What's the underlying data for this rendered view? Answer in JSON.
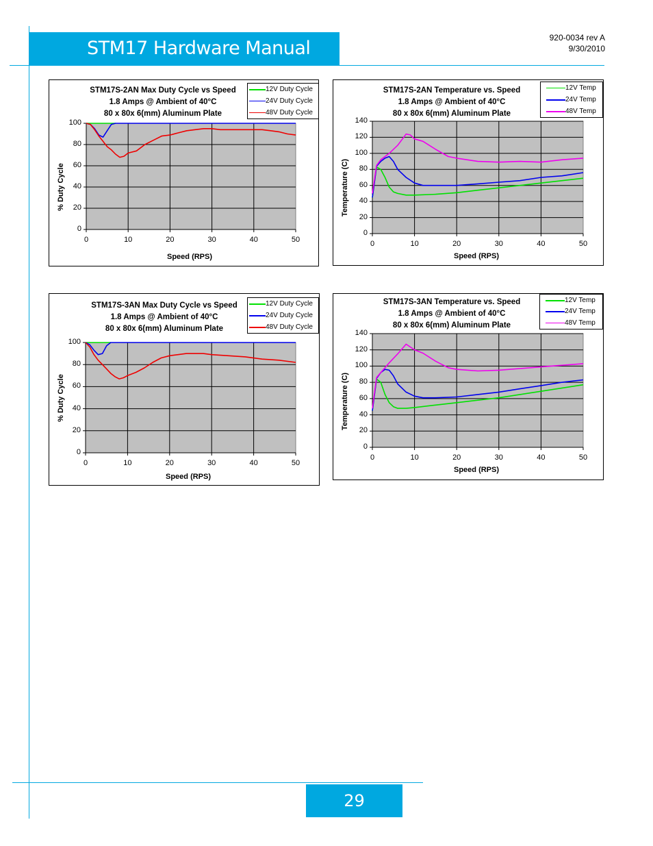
{
  "header": {
    "title": "STM17 Hardware Manual",
    "doc_number": "920-0034 rev A",
    "date": "9/30/2010"
  },
  "footer": {
    "page_number": "29"
  },
  "colors": {
    "accent": "#00a8e0",
    "plot_bg": "#c0c0c0",
    "green": "#00e000",
    "blue": "#0000ee",
    "red": "#ee0000",
    "magenta": "#ee00ee"
  },
  "charts": [
    {
      "id": "c1",
      "title_lines": [
        "STM17S-2AN  Max Duty Cycle vs Speed",
        "1.8 Amps @ Ambient of 40°C",
        "80 x 80x 6(mm) Aluminum Plate"
      ],
      "ylabel": "% Duty Cycle",
      "xlabel": "Speed (RPS)",
      "legend": [
        "12V Duty Cycle",
        "24V Duty Cycle",
        "48V Duty Cycle"
      ],
      "xticks": [
        "0",
        "10",
        "20",
        "30",
        "40",
        "50"
      ],
      "yticks": [
        "0",
        "20",
        "40",
        "60",
        "80",
        "100"
      ]
    },
    {
      "id": "c2",
      "title_lines": [
        "STM17S-2AN Temperature vs. Speed",
        "1.8 Amps @ Ambient of 40°C",
        "80 x 80x 6(mm) Aluminum Plate"
      ],
      "ylabel": "Temperature (C)",
      "xlabel": "Speed (RPS)",
      "legend": [
        "12V Temp",
        "24V Temp",
        "48V Temp"
      ],
      "xticks": [
        "0",
        "10",
        "20",
        "30",
        "40",
        "50"
      ],
      "yticks": [
        "0",
        "20",
        "40",
        "60",
        "80",
        "100",
        "120",
        "140"
      ]
    },
    {
      "id": "c3",
      "title_lines": [
        "STM17S-3AN  Max Duty Cycle vs Speed",
        "1.8 Amps @ Ambient of 40°C",
        "80 x 80x 6(mm) Aluminum Plate"
      ],
      "ylabel": "% Duty Cycle",
      "xlabel": "Speed (RPS)",
      "legend": [
        "12V Duty Cycle",
        "24V Duty Cycle",
        "48V Duty Cycle"
      ],
      "xticks": [
        "0",
        "10",
        "20",
        "30",
        "40",
        "50"
      ],
      "yticks": [
        "0",
        "20",
        "40",
        "60",
        "80",
        "100"
      ]
    },
    {
      "id": "c4",
      "title_lines": [
        "STM17S-3AN Temperature vs. Speed",
        "1.8 Amps @ Ambient of 40°C",
        "80 x 80x 6(mm) Aluminum Plate"
      ],
      "ylabel": "Temperature (C)",
      "xlabel": "Speed (RPS)",
      "legend": [
        "12V Temp",
        "24V Temp",
        "48V Temp"
      ],
      "xticks": [
        "0",
        "10",
        "20",
        "30",
        "40",
        "50"
      ],
      "yticks": [
        "0",
        "20",
        "40",
        "60",
        "80",
        "100",
        "120",
        "140"
      ]
    }
  ],
  "chart_data": [
    {
      "type": "line",
      "title": "STM17S-2AN  Max Duty Cycle vs Speed",
      "xlabel": "Speed (RPS)",
      "ylabel": "% Duty Cycle",
      "xlim": [
        0,
        50
      ],
      "ylim": [
        0,
        100
      ],
      "grid": true,
      "legend_position": "top-right",
      "series": [
        {
          "name": "12V Duty Cycle",
          "color": "#00e000",
          "x": [
            0,
            1,
            2,
            3,
            4,
            5,
            6,
            7
          ],
          "y": [
            100,
            100,
            100,
            100,
            100,
            100,
            100,
            100
          ]
        },
        {
          "name": "24V Duty Cycle",
          "color": "#0000ee",
          "x": [
            0,
            1,
            2,
            3,
            4,
            5,
            6,
            7,
            10,
            20,
            30,
            40,
            50
          ],
          "y": [
            100,
            99,
            95,
            89,
            87,
            93,
            99,
            100,
            100,
            100,
            100,
            100,
            100
          ]
        },
        {
          "name": "48V Duty Cycle",
          "color": "#ee0000",
          "x": [
            0,
            1,
            2,
            3,
            4,
            5,
            6,
            7,
            8,
            9,
            10,
            12,
            14,
            16,
            18,
            20,
            22,
            24,
            26,
            28,
            30,
            32,
            34,
            36,
            38,
            40,
            42,
            44,
            46,
            48,
            50
          ],
          "y": [
            100,
            99,
            94,
            88,
            83,
            78,
            75,
            71,
            68,
            69,
            72,
            74,
            80,
            84,
            88,
            89,
            91,
            93,
            94,
            95,
            95,
            94,
            94,
            94,
            94,
            94,
            94,
            93,
            92,
            90,
            89
          ]
        }
      ]
    },
    {
      "type": "line",
      "title": "STM17S-2AN Temperature vs. Speed",
      "xlabel": "Speed (RPS)",
      "ylabel": "Temperature (C)",
      "xlim": [
        0,
        50
      ],
      "ylim": [
        0,
        140
      ],
      "grid": true,
      "legend_position": "top-right",
      "series": [
        {
          "name": "12V Temp",
          "color": "#00e000",
          "x": [
            0,
            1,
            2,
            3,
            4,
            5,
            6,
            8,
            10,
            15,
            20,
            25,
            30,
            35,
            40,
            45,
            50
          ],
          "y": [
            45,
            83,
            80,
            70,
            58,
            52,
            50,
            48,
            48,
            49,
            51,
            54,
            57,
            60,
            63,
            66,
            69
          ]
        },
        {
          "name": "24V Temp",
          "color": "#0000ee",
          "x": [
            0,
            1,
            2,
            3,
            4,
            5,
            6,
            8,
            10,
            12,
            15,
            20,
            25,
            30,
            35,
            40,
            45,
            50
          ],
          "y": [
            45,
            84,
            90,
            94,
            96,
            90,
            80,
            70,
            63,
            60,
            60,
            60,
            62,
            64,
            66,
            70,
            72,
            76
          ]
        },
        {
          "name": "48V Temp",
          "color": "#ee00ee",
          "x": [
            0,
            1,
            2,
            4,
            6,
            8,
            9,
            10,
            12,
            15,
            18,
            20,
            25,
            30,
            35,
            40,
            45,
            50
          ],
          "y": [
            50,
            85,
            92,
            100,
            110,
            124,
            123,
            118,
            115,
            105,
            96,
            94,
            90,
            89,
            90,
            89,
            92,
            94
          ]
        }
      ]
    },
    {
      "type": "line",
      "title": "STM17S-3AN  Max Duty Cycle vs Speed",
      "xlabel": "Speed (RPS)",
      "ylabel": "% Duty Cycle",
      "xlim": [
        0,
        50
      ],
      "ylim": [
        0,
        100
      ],
      "grid": true,
      "legend_position": "top-right",
      "series": [
        {
          "name": "12V Duty Cycle",
          "color": "#00e000",
          "x": [
            0,
            1,
            2,
            3,
            4,
            5,
            6
          ],
          "y": [
            100,
            100,
            100,
            100,
            100,
            100,
            100
          ]
        },
        {
          "name": "24V Duty Cycle",
          "color": "#0000ee",
          "x": [
            0,
            1,
            2,
            3,
            4,
            5,
            6,
            7,
            10,
            20,
            30,
            40,
            50
          ],
          "y": [
            100,
            98,
            93,
            89,
            90,
            97,
            100,
            100,
            100,
            100,
            100,
            100,
            100
          ]
        },
        {
          "name": "48V Duty Cycle",
          "color": "#ee0000",
          "x": [
            0,
            1,
            2,
            3,
            4,
            5,
            6,
            7,
            8,
            9,
            10,
            12,
            14,
            16,
            18,
            20,
            22,
            24,
            26,
            28,
            30,
            34,
            38,
            42,
            46,
            50
          ],
          "y": [
            100,
            96,
            89,
            84,
            80,
            76,
            72,
            69,
            67,
            68,
            70,
            73,
            77,
            82,
            86,
            88,
            89,
            90,
            90,
            90,
            89,
            88,
            87,
            85,
            84,
            82
          ]
        }
      ]
    },
    {
      "type": "line",
      "title": "STM17S-3AN Temperature vs. Speed",
      "xlabel": "Speed (RPS)",
      "ylabel": "Temperature (C)",
      "xlim": [
        0,
        50
      ],
      "ylim": [
        0,
        140
      ],
      "grid": true,
      "legend_position": "top-right",
      "series": [
        {
          "name": "12V Temp",
          "color": "#00e000",
          "x": [
            0,
            1,
            2,
            3,
            4,
            5,
            6,
            8,
            10,
            15,
            20,
            25,
            30,
            35,
            40,
            45,
            50
          ],
          "y": [
            45,
            84,
            80,
            65,
            55,
            50,
            48,
            48,
            49,
            52,
            55,
            58,
            61,
            65,
            69,
            73,
            77
          ]
        },
        {
          "name": "24V Temp",
          "color": "#0000ee",
          "x": [
            0,
            1,
            2,
            3,
            4,
            5,
            6,
            8,
            10,
            12,
            15,
            20,
            25,
            30,
            35,
            40,
            45,
            50
          ],
          "y": [
            45,
            85,
            92,
            96,
            95,
            88,
            78,
            68,
            63,
            61,
            61,
            62,
            65,
            68,
            72,
            76,
            80,
            83
          ]
        },
        {
          "name": "48V Temp",
          "color": "#ee00ee",
          "x": [
            0,
            1,
            2,
            4,
            6,
            8,
            10,
            12,
            15,
            18,
            20,
            25,
            30,
            35,
            40,
            45,
            50
          ],
          "y": [
            48,
            86,
            92,
            104,
            115,
            127,
            120,
            116,
            106,
            98,
            96,
            94,
            95,
            97,
            99,
            101,
            103
          ]
        }
      ]
    }
  ]
}
